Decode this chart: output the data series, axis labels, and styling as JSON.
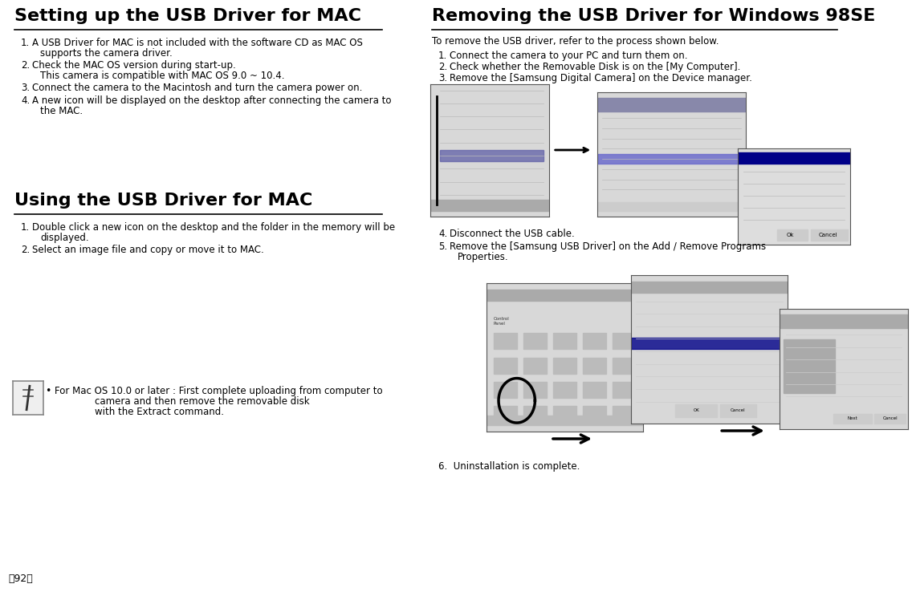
{
  "bg_color": "#ffffff",
  "text_color": "#000000",
  "left_title": "Setting up the USB Driver for MAC",
  "right_title": "Removing the USB Driver for Windows 98SE",
  "left_section2_title": "Using the USB Driver for MAC",
  "page_number": "を92ん",
  "left_items_raw": [
    [
      "1.",
      "A USB Driver for MAC is not included with the software CD as MAC OS\nsupports the camera driver."
    ],
    [
      "2.",
      "Check the MAC OS version during start-up.\nThis camera is compatible with MAC OS 9.0 ~ 10.4."
    ],
    [
      "3.",
      "Connect the camera to the Macintosh and turn the camera power on."
    ],
    [
      "4.",
      "A new icon will be displayed on the desktop after connecting the camera to\nthe MAC."
    ]
  ],
  "left_section2_items_raw": [
    [
      "1.",
      "Double click a new icon on the desktop and the folder in the memory will be\ndisplayed."
    ],
    [
      "2.",
      "Select an image file and copy or move it to MAC."
    ]
  ],
  "note_bullet": "•",
  "note_line1": "For Mac OS 10.0 or later : First complete uploading from computer to",
  "note_line2": "camera and then remove the removable disk",
  "note_line3": "with the Extract command.",
  "right_intro": "To remove the USB driver, refer to the process shown below.",
  "right_items_raw": [
    [
      "1.",
      "Connect the camera to your PC and turn them on."
    ],
    [
      "2.",
      "Check whether the Removable Disk is on the [My Computer]."
    ],
    [
      "3.",
      "Remove the [Samsung Digital Camera] on the Device manager."
    ]
  ],
  "right_items2_raw": [
    [
      "4.",
      "Disconnect the USB cable."
    ],
    [
      "5.",
      "Remove the [Samsung USB Driver] on the Add / Remove Programs\nProperties."
    ]
  ],
  "right_item6": "6.  Uninstallation is complete."
}
